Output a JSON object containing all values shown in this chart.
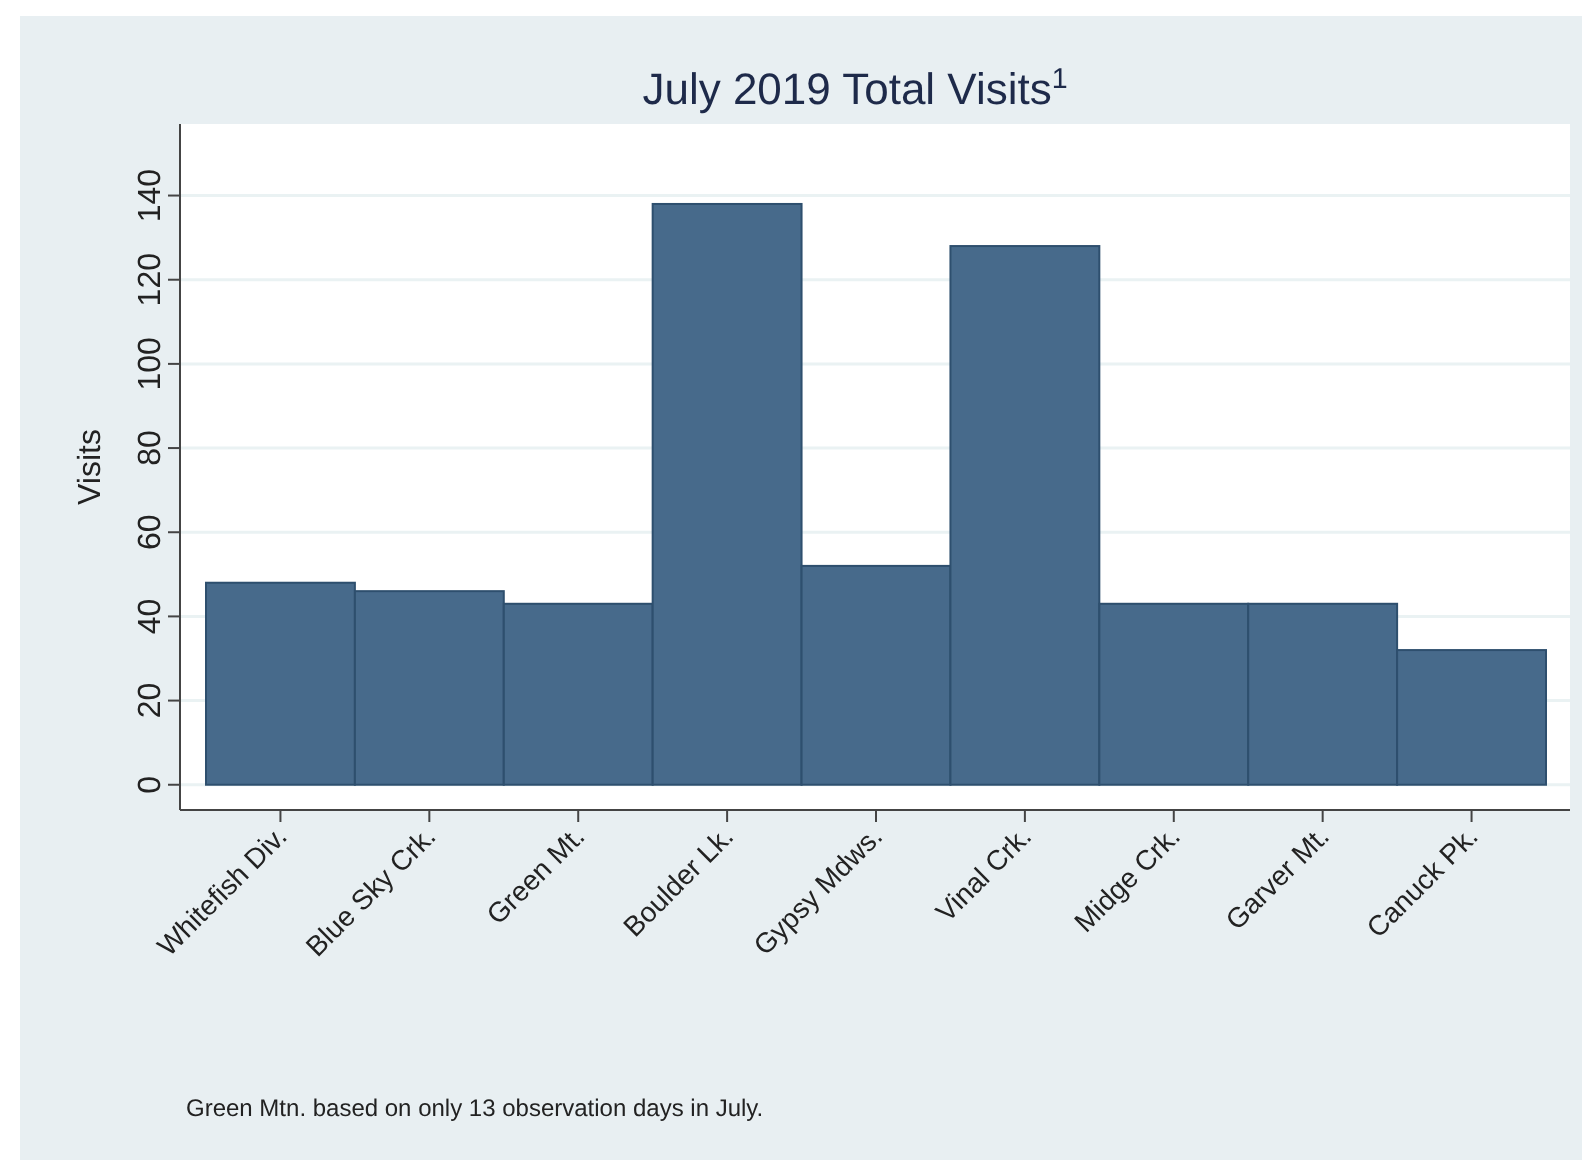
{
  "chart_data": {
    "type": "bar",
    "title": "July 2019 Total Visits$^{1}$",
    "ylabel": "Visits",
    "categories": [
      "Whitefish Div.",
      "Blue Sky Crk.",
      "Green Mt.",
      "Boulder Lk.",
      "Gypsy Mdws.",
      "Vinal Crk.",
      "Midge Crk.",
      "Garver Mt.",
      "Canuck Pk."
    ],
    "values": [
      48,
      46,
      43,
      138,
      52,
      128,
      43,
      43,
      32
    ],
    "color": "#476a8b",
    "ylim": [
      -6,
      157
    ],
    "yticks": [
      0,
      20,
      40,
      60,
      80,
      100,
      120,
      140
    ],
    "grid": "y",
    "annotations": [
      "Green Mtn. based on only 13 observation days in July."
    ]
  }
}
